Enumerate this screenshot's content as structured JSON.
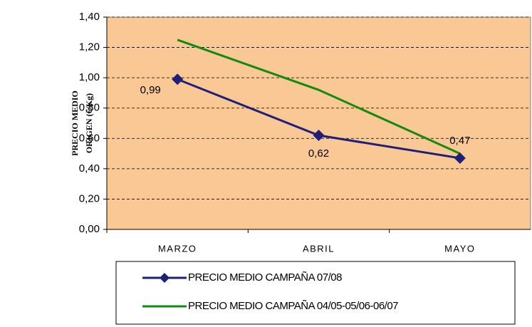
{
  "chart_data": {
    "type": "line",
    "y_label": [
      "PRECIO MEDIO",
      "ORIGEN (€/Kg)"
    ],
    "categories": [
      "MARZO",
      "ABRIL",
      "MAYO"
    ],
    "series": [
      {
        "name": "PRECIO MEDIO CAMPAÑA 07/08",
        "color": "#1f1f7a",
        "values": [
          0.99,
          0.62,
          0.47
        ],
        "value_labels": [
          "0,99",
          "0,62",
          "0,47"
        ],
        "marker": "diamond"
      },
      {
        "name": "PRECIO MEDIO CAMPAÑA 04/05-05/06-06/07",
        "color": "#138a13",
        "values": [
          1.25,
          0.92,
          0.5
        ]
      }
    ],
    "ylim": [
      0,
      1.4
    ],
    "yticks": [
      {
        "value": 0,
        "label": "0,00"
      },
      {
        "value": 0.2,
        "label": "0,20"
      },
      {
        "value": 0.4,
        "label": "0,40"
      },
      {
        "value": 0.6,
        "label": "0,60"
      },
      {
        "value": 0.8,
        "label": "0,80"
      },
      {
        "value": 1.0,
        "label": "1,00"
      },
      {
        "value": 1.2,
        "label": "1,20"
      },
      {
        "value": 1.4,
        "label": "1,40"
      }
    ],
    "grid": true,
    "plot_background": "#f9c894",
    "legend": "bottom"
  }
}
